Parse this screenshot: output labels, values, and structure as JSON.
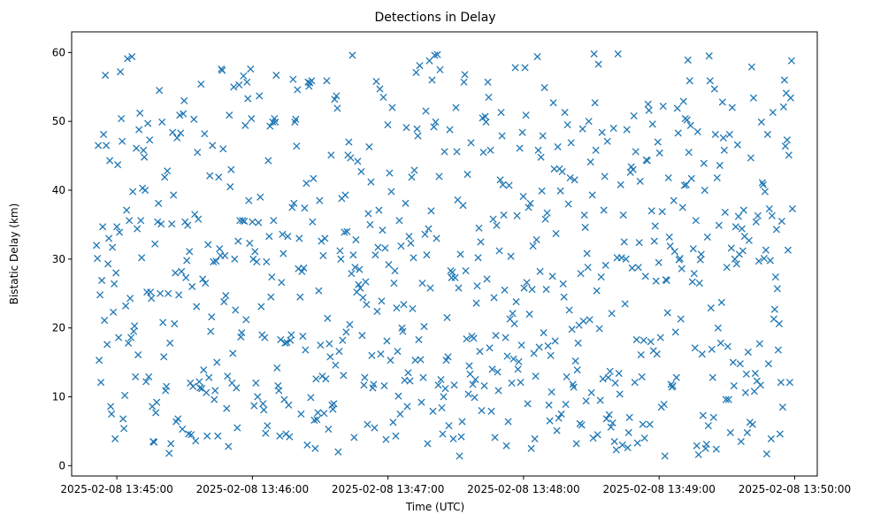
{
  "chart_data": {
    "type": "scatter",
    "title": "Detections in Delay",
    "xlabel": "Time (UTC)",
    "ylabel": "Bistatic Delay (km)",
    "x_start": "2025-02-08 13:44:51",
    "x_end": "2025-02-08 13:49:59",
    "xlim": [
      "2025-02-08 13:44:40",
      "2025-02-08 13:50:10"
    ],
    "ylim": [
      -1.5,
      63
    ],
    "x_ticks": [
      "2025-02-08 13:45:00",
      "2025-02-08 13:46:00",
      "2025-02-08 13:47:00",
      "2025-02-08 13:48:00",
      "2025-02-08 13:49:00",
      "2025-02-08 13:50:00"
    ],
    "y_ticks": [
      "0",
      "10",
      "20",
      "30",
      "40",
      "50",
      "60"
    ],
    "marker": "x",
    "color": "#1f77b4",
    "grid": false,
    "delays_km": [
      32.0,
      30.1,
      46.5,
      15.3,
      24.8,
      12.1,
      26.9,
      34.7,
      48.1,
      21.1,
      56.7,
      46.5,
      17.6,
      29.3,
      33.0,
      44.3,
      8.6,
      7.5,
      31.7,
      22.3,
      26.4,
      3.9,
      28.0,
      34.7,
      43.7,
      18.6,
      33.9,
      57.2,
      50.4,
      47.1,
      6.8,
      5.4,
      10.2,
      23.2,
      37.1,
      59.1,
      17.8,
      35.6,
      24.3,
      18.6,
      59.4,
      39.8,
      19.5,
      20.3,
      12.9,
      46.1,
      34.4,
      16.1,
      48.8,
      51.2,
      35.6,
      30.2,
      40.3,
      45.8,
      44.8,
      40.0,
      12.2,
      25.2,
      49.7,
      12.9,
      47.3,
      25.2,
      24.3,
      8.6,
      3.5,
      3.4,
      32.2,
      7.7,
      9.2,
      35.4,
      38.1,
      54.5,
      25.0,
      35.1,
      49.9,
      20.8,
      15.8,
      41.9,
      10.9,
      11.5,
      42.8,
      25.0,
      1.8,
      17.8,
      3.2,
      35.1,
      48.4,
      39.3,
      20.6,
      28.0,
      6.4,
      47.6,
      6.8,
      24.8,
      50.9,
      48.3,
      28.2,
      5.3,
      51.1,
      53.0,
      35.4,
      27.3,
      29.8,
      34.9,
      4.6,
      31.1,
      12.0,
      4.5,
      26.0,
      11.5,
      50.3,
      36.5,
      3.6,
      23.1,
      45.5,
      35.8,
      12.2,
      11.3,
      55.4,
      11.2,
      27.1,
      13.9,
      48.2,
      26.5,
      10.6,
      4.3,
      32.1,
      12.8,
      42.1,
      19.5,
      21.6,
      46.5,
      29.6,
      9.6,
      10.9,
      29.7,
      15.0,
      4.3,
      41.9,
      31.5,
      30.5,
      57.6,
      57.4,
      46.0,
      23.8,
      30.5,
      24.7,
      8.3,
      13.0,
      2.8,
      50.9,
      40.5,
      43.0,
      12.0,
      16.3,
      55.0,
      30.0,
      22.6,
      11.3,
      5.5,
      32.6,
      55.3,
      35.6,
      18.7,
      19.3,
      35.6,
      56.6,
      35.5,
      49.4,
      21.2,
      55.7,
      53.3,
      38.5,
      32.3,
      57.6,
      50.4,
      35.4,
      30.0,
      8.7,
      31.1,
      12.0,
      29.6,
      10.0,
      35.3,
      53.7,
      39.0,
      23.1,
      19.0,
      9.0,
      8.1,
      18.6,
      4.7,
      29.6,
      5.8,
      44.3,
      33.3,
      49.3,
      24.5,
      27.4,
      49.9,
      35.6,
      50.4,
      49.9,
      56.7,
      14.2,
      11.6,
      10.9,
      4.3,
      18.3,
      26.6,
      33.6,
      30.8,
      9.6,
      17.8,
      4.6,
      17.9,
      33.3,
      8.8,
      4.2,
      18.2,
      19.0,
      37.5,
      56.1,
      38.1,
      49.9,
      50.3,
      46.4,
      54.6,
      28.6,
      33.0,
      24.5,
      7.5,
      28.2,
      18.8,
      28.7,
      37.4,
      16.8,
      41.0,
      3.0,
      55.7,
      55.1,
      55.6,
      9.9,
      55.9,
      35.4,
      41.7,
      6.6,
      2.5,
      12.6,
      6.7,
      7.7,
      25.4,
      38.5,
      17.5,
      32.6,
      13.0,
      30.5,
      7.6,
      33.0,
      12.6,
      55.9,
      21.4,
      5.3,
      17.7,
      15.8,
      45.1,
      8.8,
      8.2,
      9.0,
      53.2,
      14.6,
      53.7,
      51.9,
      2.0,
      16.6,
      31.2,
      30.0,
      38.8,
      18.2,
      13.1,
      33.9,
      39.3,
      19.4,
      34.0,
      45.1,
      47.0,
      20.5,
      44.7,
      27.9,
      59.6,
      30.6,
      4.1,
      28.8,
      32.8,
      25.2,
      44.2,
      26.3,
      28.5,
      25.8,
      42.7,
      18.9,
      24.4,
      11.7,
      12.8,
      26.7,
      23.4,
      6.0,
      36.6,
      46.3,
      35.0,
      41.2,
      16.0,
      11.3,
      11.8,
      5.5,
      30.6,
      55.8,
      22.4,
      31.7,
      37.1,
      54.7,
      16.2,
      23.9,
      34.2,
      53.5,
      11.6,
      31.6,
      3.8,
      18.1,
      49.5,
      29.2,
      42.5,
      15.3,
      39.8,
      52.0,
      6.3,
      26.5,
      28.3,
      4.3,
      22.9,
      16.6,
      10.1,
      35.6,
      7.5,
      31.9,
      20.0,
      19.5,
      23.4,
      12.4,
      38.1,
      49.1,
      8.6,
      13.5,
      33.3,
      12.3,
      32.3,
      41.9,
      22.8,
      30.2,
      42.9,
      15.3,
      57.1,
      48.9,
      47.9,
      18.3,
      58.1,
      15.4,
      9.2,
      26.5,
      12.8,
      20.2,
      33.6,
      51.5,
      30.6,
      3.2,
      34.4,
      58.8,
      25.8,
      37.0,
      56.0,
      7.9,
      49.2,
      59.6,
      49.9,
      33.0,
      59.7,
      11.7,
      42.0,
      57.5,
      12.5,
      8.4,
      4.6,
      10.0,
      45.6,
      11.2,
      15.3,
      21.5,
      15.8,
      5.8,
      48.8,
      28.3,
      27.3,
      28.1,
      3.9,
      11.7,
      27.3,
      52.0,
      45.6,
      38.6,
      25.8,
      1.4,
      30.7,
      4.2,
      6.4,
      37.8,
      55.7,
      56.8,
      28.3,
      18.4,
      42.3,
      10.4,
      14.5,
      13.3,
      46.9,
      18.8,
      11.8,
      18.5,
      9.9,
      12.5,
      23.6,
      26.1,
      30.2,
      34.5,
      16.6,
      32.5,
      8.0,
      50.5,
      45.5,
      11.6,
      50.7,
      49.9,
      27.1,
      55.7,
      53.5,
      17.1,
      45.8,
      7.9,
      14.0,
      35.8,
      24.4,
      4.1,
      18.9,
      34.9,
      13.6,
      10.9,
      31.2,
      41.5,
      51.3,
      47.9,
      40.8,
      36.4,
      25.5,
      18.6,
      2.9,
      15.9,
      6.4,
      40.7,
      21.3,
      30.4,
      12.0,
      22.1,
      15.5,
      20.6,
      57.8,
      23.8,
      36.3,
      14.0,
      15.1,
      46.1,
      12.1,
      17.5,
      48.4,
      39.1,
      25.8,
      57.8,
      50.9,
      26.6,
      9.0,
      37.5,
      22.0,
      38.1,
      2.5,
      25.6,
      31.9,
      16.3,
      3.9,
      13.0,
      32.8,
      59.4,
      45.8,
      17.2,
      28.2,
      44.8,
      39.9,
      47.9,
      19.3,
      54.9,
      35.8,
      25.6,
      36.7,
      17.4,
      8.8,
      6.5,
      16.0,
      10.7,
      27.5,
      52.7,
      43.1,
      18.1,
      33.7,
      5.1,
      46.3,
      6.9,
      43.1,
      39.9,
      7.5,
      42.7,
      26.4,
      24.5,
      51.3,
      8.9,
      12.9,
      49.5,
      38.0,
      22.6,
      41.8,
      46.9,
      19.8,
      11.8,
      11.4,
      41.5,
      15.2,
      3.2,
      13.9,
      17.8,
      20.4,
      6.1,
      27.9,
      5.9,
      48.9,
      21.0,
      36.4,
      34.6,
      9.4,
      30.8,
      28.8,
      50.0,
      21.2,
      44.1,
      10.6,
      39.3,
      4.0,
      59.8,
      52.7,
      45.8,
      25.4,
      4.5,
      58.3,
      19.9,
      9.5,
      27.4,
      48.4,
      12.6,
      37.1,
      42.0,
      29.1,
      6.8,
      47.1,
      12.8,
      7.4,
      13.7,
      5.6,
      22.1,
      6.2,
      49.0,
      3.5,
      12.0,
      2.3,
      30.2,
      59.8,
      13.4,
      10.4,
      40.8,
      30.2,
      3.0,
      36.4,
      32.5,
      23.5,
      30.0,
      48.8,
      2.6,
      4.8,
      7.0,
      42.6,
      43.4,
      28.7,
      43.0,
      50.8,
      12.1,
      45.6,
      18.3,
      3.3,
      28.8,
      32.4,
      41.3,
      16.1,
      12.9,
      6.0,
      18.2,
      4.0,
      27.5,
      44.4,
      44.3,
      52.5,
      51.6,
      6.0,
      18.0,
      37.0,
      49.6,
      16.7,
      32.6,
      34.8,
      26.8,
      16.2,
      47.0,
      29.5,
      45.4,
      18.6,
      8.5,
      36.9,
      52.2,
      8.9,
      1.4,
      27.0,
      26.9,
      22.2,
      41.8,
      33.2,
      31.9,
      11.8,
      11.4,
      11.6,
      38.5,
      31.1,
      19.4,
      12.8,
      51.9,
      48.3,
      29.9,
      30.1,
      21.3,
      28.6,
      37.5,
      52.9,
      40.7,
      50.4,
      40.8,
      50.2,
      58.9,
      45.5,
      55.9,
      49.4,
      41.7,
      26.7,
      31.5,
      27.9,
      17.1,
      35.6,
      2.9,
      48.5,
      1.6,
      26.5,
      29.9,
      30.7,
      16.2,
      7.3,
      43.9,
      40.0,
      2.5,
      3.1,
      33.2,
      5.8,
      59.5,
      55.9,
      22.9,
      16.9,
      12.8,
      7.0,
      54.7,
      48.1,
      2.4,
      41.8,
      20.0,
      34.9,
      43.6,
      17.8,
      23.7,
      52.8,
      47.6,
      45.8,
      36.8,
      9.6,
      28.8,
      17.3,
      9.6,
      48.1,
      4.8,
      31.6,
      52.0,
      15.0,
      11.6,
      30.0,
      34.7,
      29.3,
      46.6,
      36.2,
      30.7,
      14.8,
      3.5,
      34.4,
      31.2,
      37.1,
      33.3,
      10.6,
      13.3,
      4.8,
      16.5,
      32.7,
      6.3,
      44.7,
      57.9,
      6.0,
      53.4,
      10.8,
      13.4,
      35.4,
      12.3,
      36.3,
      29.7,
      17.7,
      11.7,
      49.9,
      41.1,
      40.8,
      30.1,
      39.8,
      31.3,
      1.7,
      48.1,
      14.8,
      37.3,
      29.8,
      3.9,
      36.3,
      51.3,
      21.3,
      22.7,
      27.4,
      34.3,
      25.7,
      16.8,
      20.6,
      4.6,
      12.1,
      35.5,
      8.5,
      52.1,
      56.0,
      46.4,
      54.1,
      47.3,
      31.3,
      45.1,
      12.1,
      53.4,
      58.8,
      37.3
    ]
  }
}
